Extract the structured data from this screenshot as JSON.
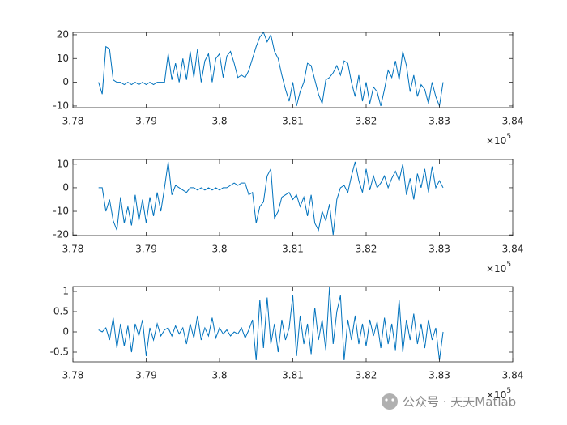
{
  "chart_data": [
    {
      "type": "line",
      "x": [
        3.7835,
        3.784,
        3.7845,
        3.785,
        3.7855,
        3.786,
        3.7865,
        3.787,
        3.7875,
        3.788,
        3.7885,
        3.789,
        3.7895,
        3.79,
        3.7905,
        3.791,
        3.7915,
        3.792,
        3.7925,
        3.793,
        3.7935,
        3.794,
        3.7945,
        3.795,
        3.7955,
        3.796,
        3.7965,
        3.797,
        3.7975,
        3.798,
        3.7985,
        3.799,
        3.7995,
        3.8,
        3.8005,
        3.801,
        3.8015,
        3.802,
        3.8025,
        3.803,
        3.8035,
        3.804,
        3.8045,
        3.805,
        3.8055,
        3.806,
        3.8065,
        3.807,
        3.8075,
        3.808,
        3.8085,
        3.809,
        3.8095,
        3.81,
        3.8105,
        3.811,
        3.8115,
        3.812,
        3.8125,
        3.813,
        3.8135,
        3.814,
        3.8145,
        3.815,
        3.8155,
        3.816,
        3.8165,
        3.817,
        3.8175,
        3.818,
        3.8185,
        3.819,
        3.8195,
        3.82,
        3.8205,
        3.821,
        3.8215,
        3.822,
        3.8225,
        3.823,
        3.8235,
        3.824,
        3.8245,
        3.825,
        3.8255,
        3.826,
        3.8265,
        3.827,
        3.8275,
        3.828,
        3.8285,
        3.829,
        3.8295,
        3.83,
        3.8305
      ],
      "series": [
        {
          "color": "#0072bd",
          "values": [
            0,
            -5,
            15,
            14,
            1,
            0,
            0,
            -1,
            0,
            -1,
            0,
            -1,
            0,
            -1,
            0,
            -1,
            0,
            0,
            0,
            12,
            1,
            8,
            0,
            10,
            1,
            13,
            2,
            14,
            0,
            9,
            12,
            0,
            10,
            12,
            2,
            11,
            13,
            8,
            2,
            3,
            2,
            5,
            10,
            15,
            19,
            21,
            17,
            20,
            13,
            10,
            3,
            -3,
            -8,
            0,
            -10,
            -4,
            0,
            8,
            7,
            1,
            -5,
            -9,
            1,
            2,
            4,
            7,
            3,
            9,
            8,
            0,
            -6,
            3,
            -8,
            0,
            -9,
            -2,
            -4,
            -10,
            -3,
            5,
            2,
            9,
            1,
            13,
            7,
            -4,
            3,
            -6,
            -1,
            -3,
            -9,
            0,
            -6,
            -10,
            0
          ]
        }
      ],
      "xlim": [
        3.78,
        3.84
      ],
      "xticks": [
        3.78,
        3.79,
        3.8,
        3.81,
        3.82,
        3.83,
        3.84
      ],
      "x_exponent_base": "×10",
      "x_exponent": 5,
      "ylim": [
        -10.7,
        21
      ],
      "yticks": [
        -10,
        0,
        10,
        20
      ]
    },
    {
      "type": "line",
      "x": [
        3.7835,
        3.784,
        3.7845,
        3.785,
        3.7855,
        3.786,
        3.7865,
        3.787,
        3.7875,
        3.788,
        3.7885,
        3.789,
        3.7895,
        3.79,
        3.7905,
        3.791,
        3.7915,
        3.792,
        3.7925,
        3.793,
        3.7935,
        3.794,
        3.7945,
        3.795,
        3.7955,
        3.796,
        3.7965,
        3.797,
        3.7975,
        3.798,
        3.7985,
        3.799,
        3.7995,
        3.8,
        3.8005,
        3.801,
        3.8015,
        3.802,
        3.8025,
        3.803,
        3.8035,
        3.804,
        3.8045,
        3.805,
        3.8055,
        3.806,
        3.8065,
        3.807,
        3.8075,
        3.808,
        3.8085,
        3.809,
        3.8095,
        3.81,
        3.8105,
        3.811,
        3.8115,
        3.812,
        3.8125,
        3.813,
        3.8135,
        3.814,
        3.8145,
        3.815,
        3.8155,
        3.816,
        3.8165,
        3.817,
        3.8175,
        3.818,
        3.8185,
        3.819,
        3.8195,
        3.82,
        3.8205,
        3.821,
        3.8215,
        3.822,
        3.8225,
        3.823,
        3.8235,
        3.824,
        3.8245,
        3.825,
        3.8255,
        3.826,
        3.8265,
        3.827,
        3.8275,
        3.828,
        3.8285,
        3.829,
        3.8295,
        3.83,
        3.8305
      ],
      "series": [
        {
          "color": "#0072bd",
          "values": [
            0,
            0,
            -10,
            -5,
            -14,
            -18,
            -4,
            -15,
            -8,
            -16,
            -3,
            -14,
            -5,
            -15,
            -4,
            -12,
            -2,
            -10,
            0,
            11,
            -3,
            1,
            0,
            -1,
            -2,
            0,
            0,
            -1,
            0,
            -1,
            0,
            -1,
            0,
            -1,
            0,
            0,
            1,
            2,
            1,
            2,
            2,
            -3,
            -2,
            -15,
            -8,
            -6,
            5,
            8,
            -13,
            -10,
            -4,
            -3,
            -2,
            -5,
            -3,
            -8,
            -4,
            -12,
            -3,
            -15,
            -18,
            -10,
            -14,
            -7,
            -20,
            -5,
            0,
            1,
            -2,
            5,
            11,
            3,
            -2,
            8,
            -1,
            5,
            0,
            2,
            5,
            0,
            4,
            7,
            3,
            10,
            -3,
            4,
            -5,
            6,
            0,
            8,
            -2,
            9,
            0,
            3,
            0
          ]
        }
      ],
      "xlim": [
        3.78,
        3.84
      ],
      "xticks": [
        3.78,
        3.79,
        3.8,
        3.81,
        3.82,
        3.83,
        3.84
      ],
      "x_exponent_base": "×10",
      "x_exponent": 5,
      "ylim": [
        -20.3,
        12
      ],
      "yticks": [
        -20,
        -10,
        0,
        10
      ]
    },
    {
      "type": "line",
      "x": [
        3.7835,
        3.784,
        3.7845,
        3.785,
        3.7855,
        3.786,
        3.7865,
        3.787,
        3.7875,
        3.788,
        3.7885,
        3.789,
        3.7895,
        3.79,
        3.7905,
        3.791,
        3.7915,
        3.792,
        3.7925,
        3.793,
        3.7935,
        3.794,
        3.7945,
        3.795,
        3.7955,
        3.796,
        3.7965,
        3.797,
        3.7975,
        3.798,
        3.7985,
        3.799,
        3.7995,
        3.8,
        3.8005,
        3.801,
        3.8015,
        3.802,
        3.8025,
        3.803,
        3.8035,
        3.804,
        3.8045,
        3.805,
        3.8055,
        3.806,
        3.8065,
        3.807,
        3.8075,
        3.808,
        3.8085,
        3.809,
        3.8095,
        3.81,
        3.8105,
        3.811,
        3.8115,
        3.812,
        3.8125,
        3.813,
        3.8135,
        3.814,
        3.8145,
        3.815,
        3.8155,
        3.816,
        3.8165,
        3.817,
        3.8175,
        3.818,
        3.8185,
        3.819,
        3.8195,
        3.82,
        3.8205,
        3.821,
        3.8215,
        3.822,
        3.8225,
        3.823,
        3.8235,
        3.824,
        3.8245,
        3.825,
        3.8255,
        3.826,
        3.8265,
        3.827,
        3.8275,
        3.828,
        3.8285,
        3.829,
        3.8295,
        3.83,
        3.8305
      ],
      "series": [
        {
          "color": "#0072bd",
          "values": [
            0.05,
            0,
            0.1,
            -0.2,
            0.35,
            -0.4,
            0.2,
            -0.35,
            0.15,
            -0.5,
            0.2,
            -0.1,
            0.3,
            -0.6,
            0.1,
            -0.2,
            0.2,
            -0.1,
            0.05,
            0.1,
            -0.1,
            0.15,
            -0.05,
            0.1,
            -0.3,
            0.2,
            -0.15,
            0.4,
            -0.2,
            0.1,
            -0.1,
            0.35,
            -0.15,
            0.1,
            -0.05,
            0.05,
            -0.1,
            0,
            -0.05,
            0.1,
            -0.15,
            0.05,
            0.3,
            -0.7,
            0.8,
            -0.4,
            0.85,
            -0.3,
            0.2,
            -0.5,
            0.3,
            -0.2,
            0.1,
            0.9,
            -0.6,
            0.4,
            -0.3,
            0.2,
            -0.55,
            0.6,
            -0.2,
            0.3,
            -0.45,
            1.1,
            -0.3,
            0.5,
            0.9,
            -0.7,
            0.3,
            -0.2,
            0.4,
            -0.3,
            0.2,
            -0.35,
            0.3,
            -0.1,
            0.25,
            -0.4,
            0.35,
            -0.3,
            0.2,
            -0.45,
            0.8,
            -0.5,
            0.3,
            -0.2,
            0.45,
            -0.3,
            0.2,
            -0.4,
            0.3,
            -0.2,
            0.1,
            -0.7,
            0
          ]
        }
      ],
      "xlim": [
        3.78,
        3.84
      ],
      "xticks": [
        3.78,
        3.79,
        3.8,
        3.81,
        3.82,
        3.83,
        3.84
      ],
      "x_exponent_base": "×10",
      "x_exponent": 5,
      "ylim": [
        -0.74,
        1.12
      ],
      "yticks": [
        -0.5,
        0,
        0.5,
        1
      ]
    }
  ],
  "watermark": "公众号 · 天天Matlab"
}
